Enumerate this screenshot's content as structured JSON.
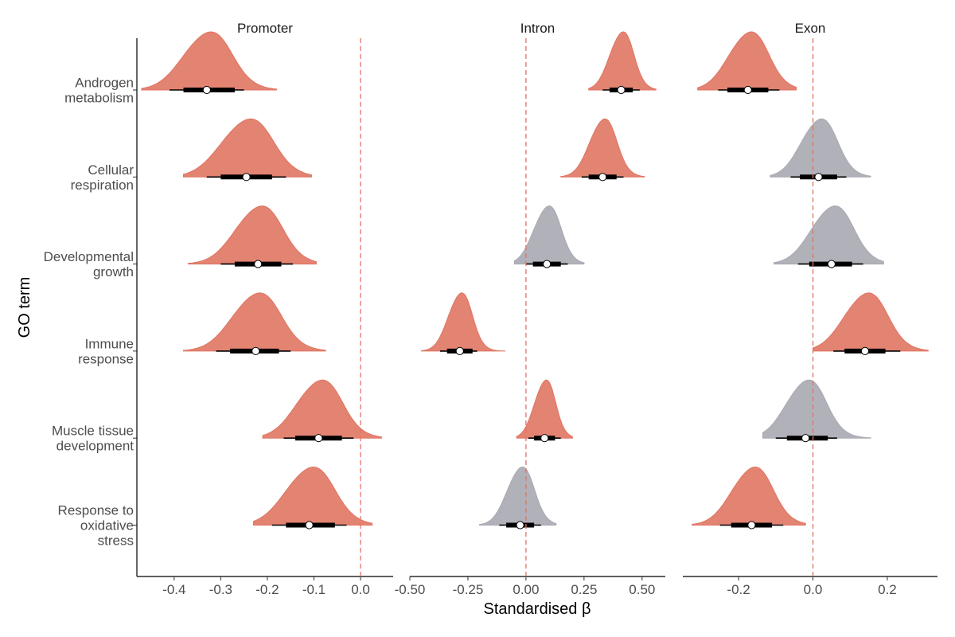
{
  "chart_data": {
    "type": "density-interval",
    "xlabel": "Standardised β",
    "ylabel": "GO term",
    "colors": {
      "significant": "#e07563",
      "non_significant": "#a9a9b1",
      "interval": "#000000",
      "median_fill": "#ffffff",
      "zero_line": "#e07563"
    },
    "rows": [
      {
        "label_lines": [
          "Androgen",
          "metabolism"
        ]
      },
      {
        "label_lines": [
          "Cellular",
          "respiration"
        ]
      },
      {
        "label_lines": [
          "Developmental",
          "growth"
        ]
      },
      {
        "label_lines": [
          "Immune",
          "response"
        ]
      },
      {
        "label_lines": [
          "Muscle tissue",
          "development"
        ]
      },
      {
        "label_lines": [
          "Response to",
          "oxidative",
          "stress"
        ]
      }
    ],
    "panels": [
      {
        "title": "Promoter",
        "xlim": [
          -0.48,
          0.07
        ],
        "ticks": [
          -0.4,
          -0.3,
          -0.2,
          -0.1,
          0.0
        ],
        "tick_labels": [
          "-0.4",
          "-0.3",
          "-0.2",
          "-0.1",
          "0.0"
        ],
        "estimates": [
          {
            "median": -0.33,
            "q50": [
              -0.38,
              -0.27
            ],
            "q95": [
              -0.41,
              -0.25
            ],
            "range": [
              -0.47,
              -0.18
            ],
            "significant": true
          },
          {
            "median": -0.245,
            "q50": [
              -0.3,
              -0.19
            ],
            "q95": [
              -0.33,
              -0.16
            ],
            "range": [
              -0.38,
              -0.105
            ],
            "significant": true
          },
          {
            "median": -0.22,
            "q50": [
              -0.27,
              -0.17
            ],
            "q95": [
              -0.3,
              -0.145
            ],
            "range": [
              -0.37,
              -0.095
            ],
            "significant": true
          },
          {
            "median": -0.225,
            "q50": [
              -0.28,
              -0.175
            ],
            "q95": [
              -0.31,
              -0.15
            ],
            "range": [
              -0.38,
              -0.075
            ],
            "significant": true
          },
          {
            "median": -0.09,
            "q50": [
              -0.14,
              -0.04
            ],
            "q95": [
              -0.165,
              -0.015
            ],
            "range": [
              -0.21,
              0.045
            ],
            "significant": true
          },
          {
            "median": -0.11,
            "q50": [
              -0.16,
              -0.055
            ],
            "q95": [
              -0.19,
              -0.03
            ],
            "range": [
              -0.23,
              0.025
            ],
            "significant": true
          }
        ]
      },
      {
        "title": "Intron",
        "xlim": [
          -0.5,
          0.6
        ],
        "ticks": [
          -0.5,
          -0.25,
          0.0,
          0.25,
          0.5
        ],
        "tick_labels": [
          "-0.50",
          "-0.25",
          "0.00",
          "0.25",
          "0.50"
        ],
        "estimates": [
          {
            "median": 0.41,
            "q50": [
              0.36,
              0.46
            ],
            "q95": [
              0.33,
              0.49
            ],
            "range": [
              0.27,
              0.56
            ],
            "significant": true
          },
          {
            "median": 0.33,
            "q50": [
              0.27,
              0.39
            ],
            "q95": [
              0.24,
              0.42
            ],
            "range": [
              0.15,
              0.51
            ],
            "significant": true
          },
          {
            "median": 0.09,
            "q50": [
              0.03,
              0.15
            ],
            "q95": [
              0.0,
              0.18
            ],
            "range": [
              -0.05,
              0.25
            ],
            "significant": false
          },
          {
            "median": -0.285,
            "q50": [
              -0.34,
              -0.23
            ],
            "q95": [
              -0.37,
              -0.21
            ],
            "range": [
              -0.45,
              -0.09
            ],
            "significant": true
          },
          {
            "median": 0.08,
            "q50": [
              0.035,
              0.125
            ],
            "q95": [
              0.01,
              0.15
            ],
            "range": [
              -0.04,
              0.2
            ],
            "significant": true
          },
          {
            "median": -0.025,
            "q50": [
              -0.085,
              0.035
            ],
            "q95": [
              -0.115,
              0.065
            ],
            "range": [
              -0.2,
              0.13
            ],
            "significant": false
          }
        ]
      },
      {
        "title": "Exon",
        "xlim": [
          -0.35,
          0.335
        ],
        "ticks": [
          -0.2,
          0.0,
          0.2
        ],
        "tick_labels": [
          "-0.2",
          "0.0",
          "0.2"
        ],
        "estimates": [
          {
            "median": -0.175,
            "q50": [
              -0.23,
              -0.12
            ],
            "q95": [
              -0.255,
              -0.09
            ],
            "range": [
              -0.31,
              -0.045
            ],
            "significant": true
          },
          {
            "median": 0.015,
            "q50": [
              -0.035,
              0.065
            ],
            "q95": [
              -0.06,
              0.09
            ],
            "range": [
              -0.115,
              0.155
            ],
            "significant": false
          },
          {
            "median": 0.05,
            "q50": [
              -0.01,
              0.105
            ],
            "q95": [
              -0.04,
              0.135
            ],
            "range": [
              -0.105,
              0.19
            ],
            "significant": false
          },
          {
            "median": 0.14,
            "q50": [
              0.085,
              0.195
            ],
            "q95": [
              0.055,
              0.235
            ],
            "range": [
              0.0,
              0.31
            ],
            "significant": true
          },
          {
            "median": -0.02,
            "q50": [
              -0.07,
              0.04
            ],
            "q95": [
              -0.1,
              0.065
            ],
            "range": [
              -0.135,
              0.155
            ],
            "significant": false
          },
          {
            "median": -0.165,
            "q50": [
              -0.22,
              -0.11
            ],
            "q95": [
              -0.25,
              -0.08
            ],
            "range": [
              -0.325,
              -0.02
            ],
            "significant": true
          }
        ]
      }
    ]
  }
}
